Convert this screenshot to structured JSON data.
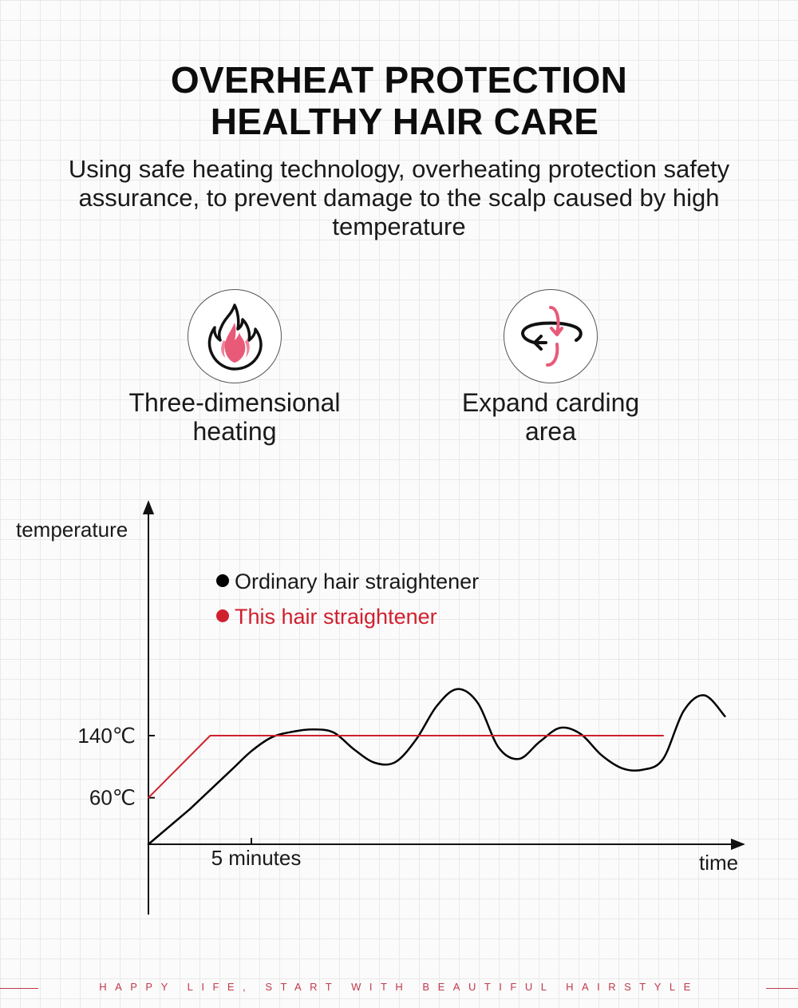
{
  "header": {
    "title_line1": "OVERHEAT PROTECTION",
    "title_line2": "HEALTHY HAIR CARE",
    "subtitle": "Using safe heating technology, overheating protection safety assurance, to prevent damage to the scalp caused by high temperature"
  },
  "features": [
    {
      "icon": "flame-icon",
      "label_line1": "Three-dimensional",
      "label_line2": "heating"
    },
    {
      "icon": "rotate-arrows-icon",
      "label_line1": "Expand carding",
      "label_line2": "area"
    }
  ],
  "colors": {
    "ordinary": "#000000",
    "this_product": "#d0202e",
    "accent_pink": "#e85a78",
    "footer": "#c0394a"
  },
  "chart_data": {
    "type": "line",
    "ylabel": "temperature",
    "xlabel": "time",
    "y_ticks": [
      {
        "value": 60,
        "label": "60℃"
      },
      {
        "value": 140,
        "label": "140℃"
      }
    ],
    "x_ticks": [
      {
        "value": 5,
        "label": "5 minutes"
      }
    ],
    "xlim": [
      0,
      30
    ],
    "ylim": [
      0,
      200
    ],
    "legend_placement": "top-left",
    "series": [
      {
        "name": "Ordinary hair straightener",
        "color": "#000000",
        "x": [
          0,
          2,
          4,
          5,
          6,
          7,
          8,
          9,
          10,
          11,
          12,
          13,
          14,
          15,
          16,
          17,
          18,
          19,
          20,
          21,
          22,
          23,
          24,
          25,
          26,
          27,
          28
        ],
        "values": [
          0,
          45,
          95,
          120,
          138,
          145,
          148,
          144,
          122,
          105,
          106,
          135,
          178,
          200,
          182,
          125,
          110,
          132,
          150,
          142,
          115,
          98,
          96,
          110,
          172,
          192,
          165
        ]
      },
      {
        "name": "This hair straightener",
        "color": "#d0202e",
        "x": [
          0,
          3,
          25
        ],
        "values": [
          60,
          140,
          140
        ]
      }
    ]
  },
  "footer": {
    "tagline": "HAPPY LIFE, START WITH BEAUTIFUL HAIRSTYLE"
  }
}
